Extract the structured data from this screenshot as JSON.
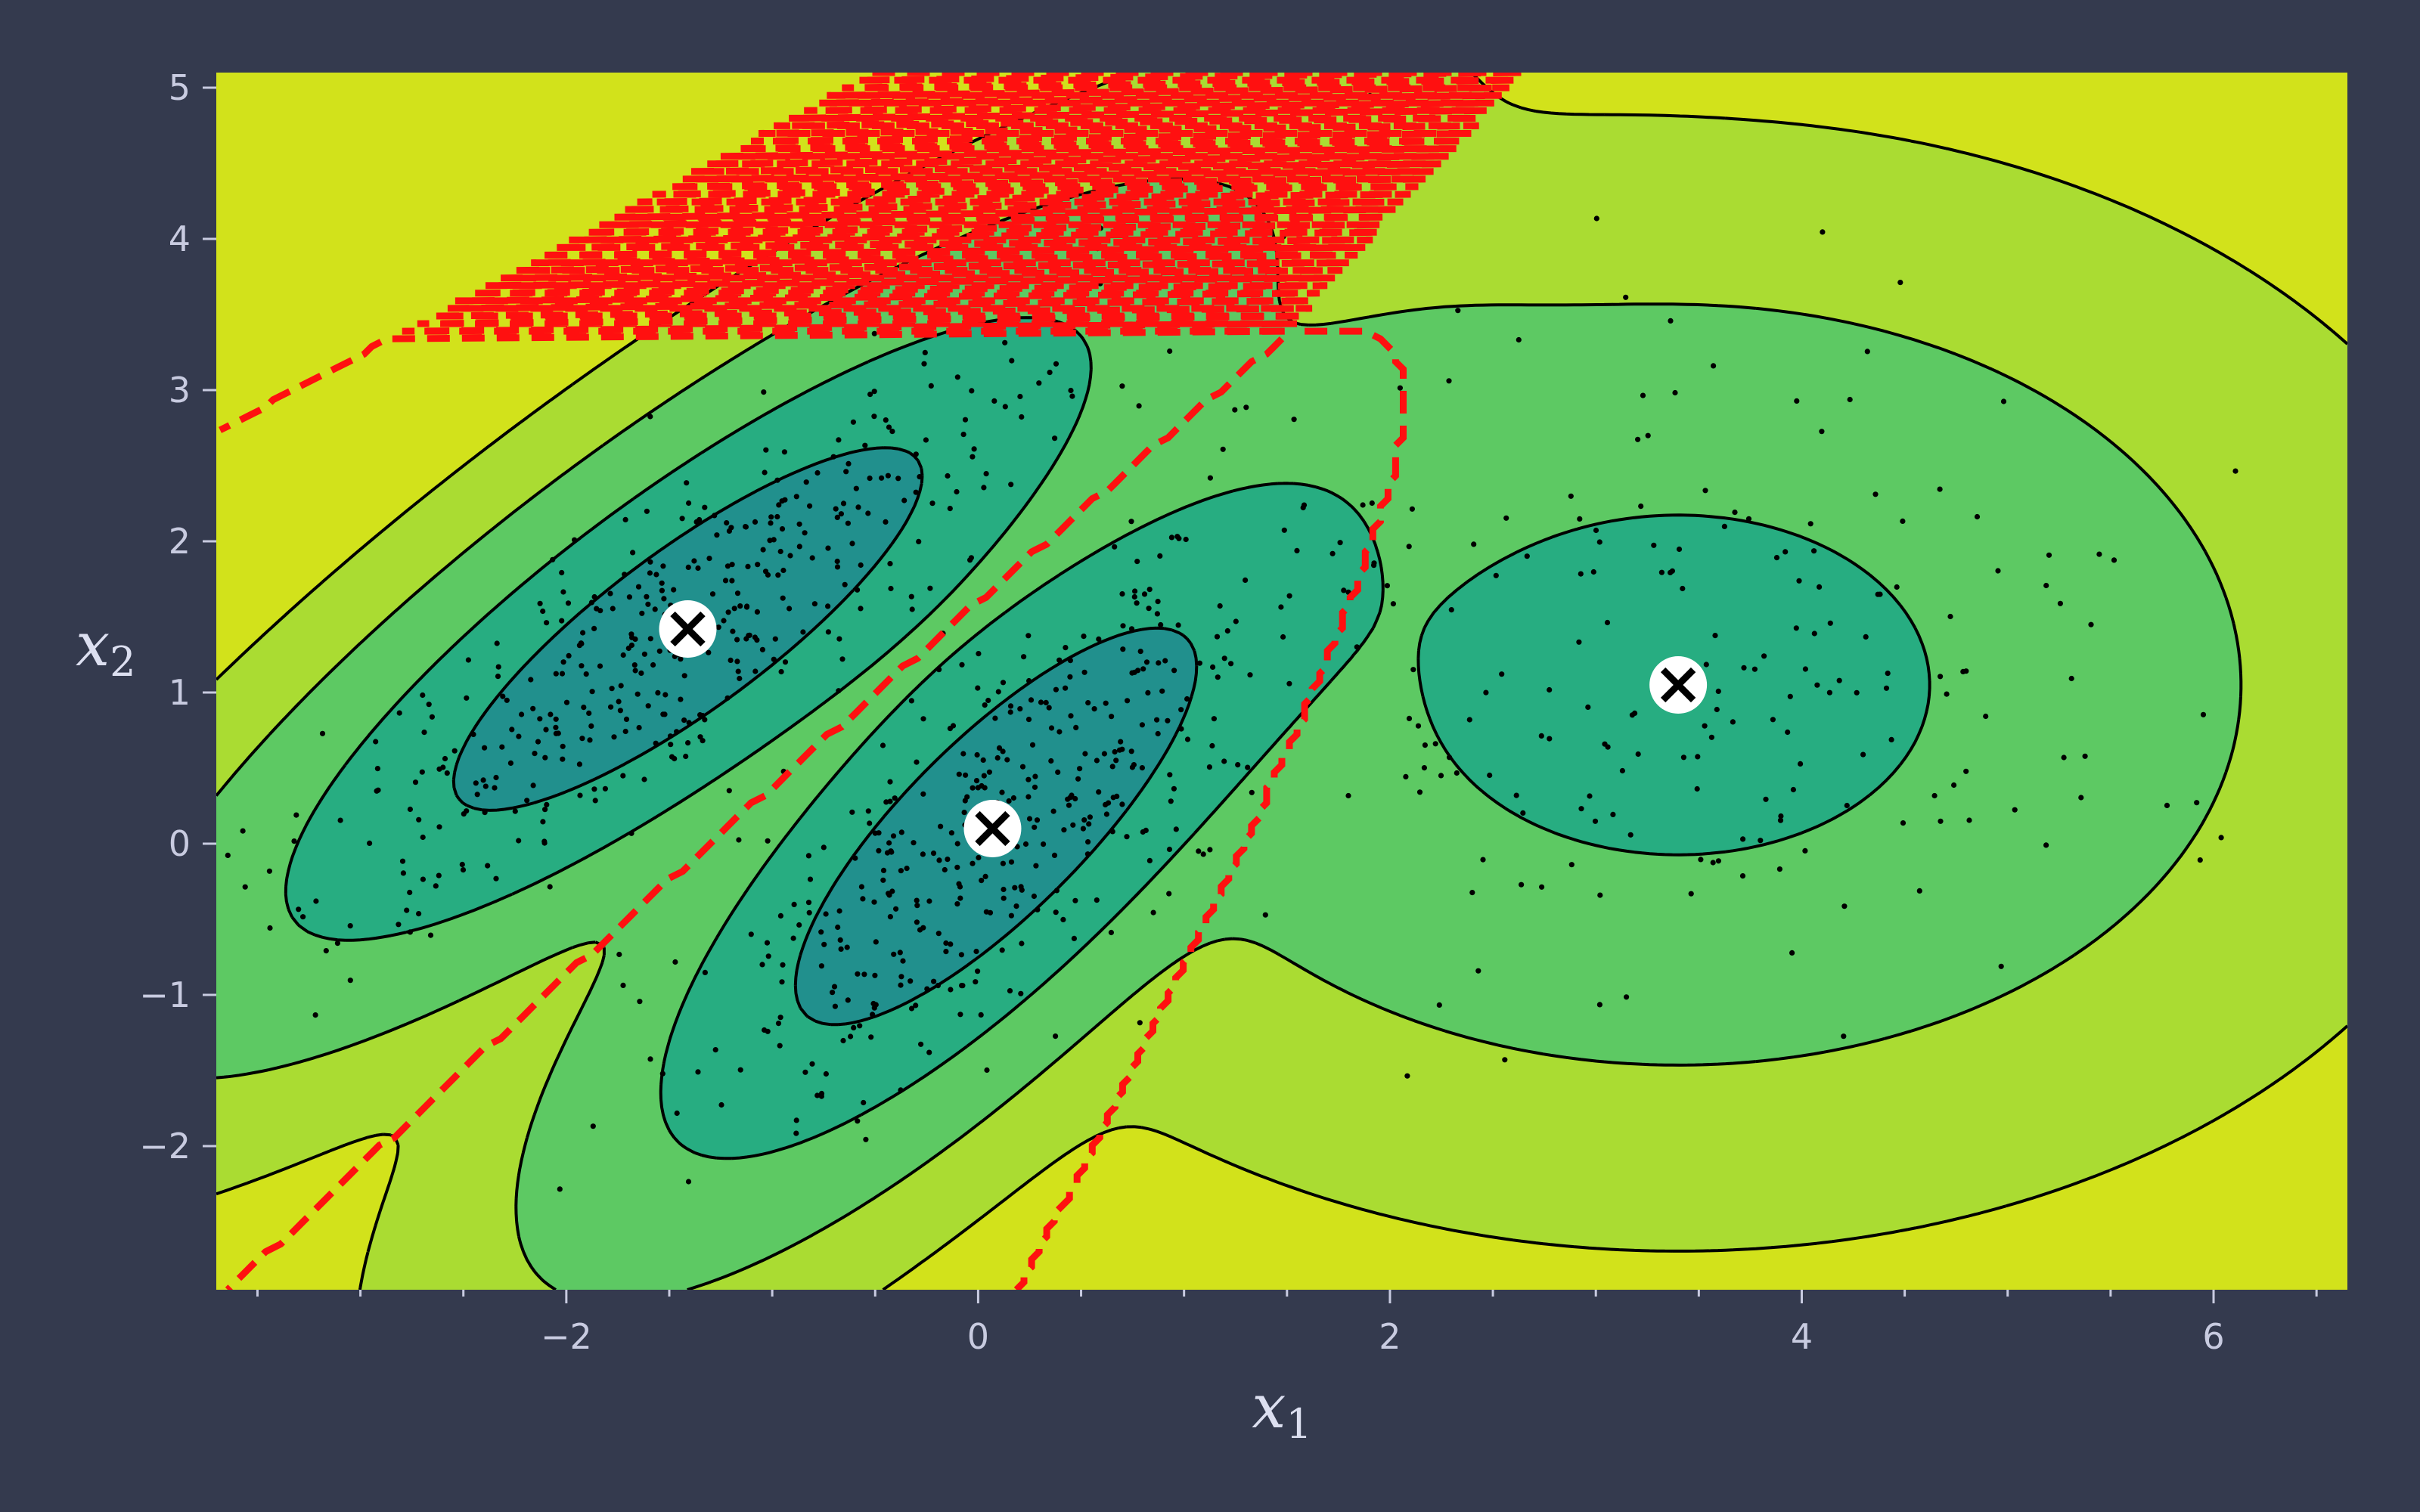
{
  "chart_data": {
    "type": "contour",
    "title": "",
    "xlabel": "x",
    "xlabel_sub": "1",
    "ylabel": "x",
    "ylabel_sub": "2",
    "xlim": [
      -3.7,
      6.65
    ],
    "ylim": [
      -2.95,
      5.1
    ],
    "xticks": [
      {
        "value": -2,
        "label": "−2"
      },
      {
        "value": 0,
        "label": "0"
      },
      {
        "value": 2,
        "label": "2"
      },
      {
        "value": 4,
        "label": "4"
      },
      {
        "value": 6,
        "label": "6"
      }
    ],
    "yticks": [
      {
        "value": -2,
        "label": "−2"
      },
      {
        "value": -1,
        "label": "−1"
      },
      {
        "value": 0,
        "label": "0"
      },
      {
        "value": 1,
        "label": "1"
      },
      {
        "value": 2,
        "label": "2"
      },
      {
        "value": 3,
        "label": "3"
      },
      {
        "value": 4,
        "label": "4"
      },
      {
        "value": 5,
        "label": "5"
      }
    ],
    "centroids": [
      {
        "x": -1.41,
        "y": 1.42
      },
      {
        "x": 0.07,
        "y": 0.1
      },
      {
        "x": 3.4,
        "y": 1.05
      }
    ],
    "components": [
      {
        "mean": [
          -1.41,
          1.42
        ],
        "cov": [
          [
            0.9,
            0.8
          ],
          [
            0.8,
            1.0
          ]
        ]
      },
      {
        "mean": [
          0.07,
          0.1
        ],
        "cov": [
          [
            0.6,
            0.65
          ],
          [
            0.65,
            1.1
          ]
        ]
      },
      {
        "mean": [
          3.4,
          1.05
        ],
        "cov": [
          [
            1.3,
            0.0
          ],
          [
            0.0,
            1.1
          ]
        ]
      }
    ],
    "weights": [
      0.4,
      0.4,
      0.2
    ],
    "sample_counts": [
      400,
      400,
      200
    ],
    "colors": {
      "levels": [
        "#482071",
        "#3b528b",
        "#2c728e",
        "#21908d",
        "#27ad81",
        "#5dc963",
        "#aadc32",
        "#d2e21b"
      ],
      "contour_line": "#000000",
      "decision_boundary": "#ff0000",
      "samples": "#000000",
      "centroid_fill": "#ffffff",
      "centroid_cross": "#000000"
    }
  }
}
